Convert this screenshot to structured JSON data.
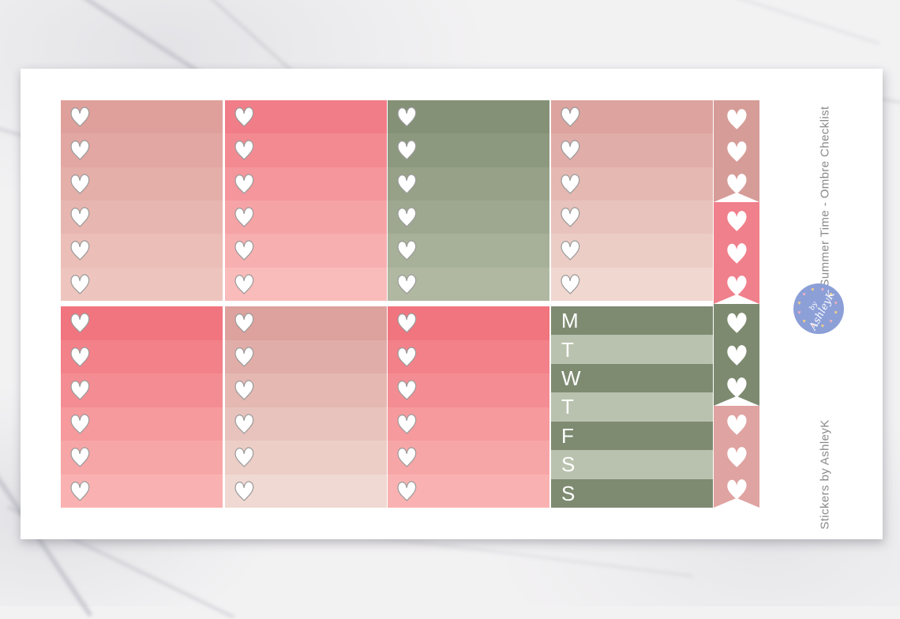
{
  "side_text": {
    "title": "Summer Time - Ombre Checklist",
    "credit": "Stickers by AshleyK",
    "color": "#8a8a8a"
  },
  "logo": {
    "line1": "by",
    "line2": "AshleyK",
    "circle_color": "#8c9fd7",
    "text_color": "#ffffff",
    "accent_heart_colors": [
      "#f2b2bd",
      "#f5d286"
    ]
  },
  "stickers": {
    "heart_fill": "#ffffff",
    "heart_outline_color": "#9a9a9a",
    "top_row": [
      {
        "id": "ombre-checklist-dusty-rose",
        "rows": 6,
        "top_color": "#dfa09b",
        "bottom_color": "#eec5be"
      },
      {
        "id": "ombre-checklist-coral",
        "rows": 6,
        "top_color": "#f17d88",
        "bottom_color": "#f9bcba"
      },
      {
        "id": "ombre-checklist-sage",
        "rows": 6,
        "top_color": "#849176",
        "bottom_color": "#b0b8a1"
      },
      {
        "id": "ombre-checklist-dusty-rose-2",
        "rows": 6,
        "top_color": "#dda39e",
        "bottom_color": "#f0d7d0"
      }
    ],
    "bottom_row": [
      {
        "id": "ombre-checklist-coral-2",
        "rows": 6,
        "top_color": "#f1757f",
        "bottom_color": "#f9b2b1"
      },
      {
        "id": "ombre-checklist-dusty-rose-3",
        "rows": 6,
        "top_color": "#dda29d",
        "bottom_color": "#f0d9d2"
      },
      {
        "id": "ombre-checklist-coral-3",
        "rows": 6,
        "top_color": "#f1757f",
        "bottom_color": "#f9b2b1"
      },
      {
        "id": "weekday-date-covers",
        "type": "weekday",
        "letters": [
          "M",
          "T",
          "W",
          "T",
          "F",
          "S",
          "S"
        ],
        "dark_color": "#7e8b71",
        "light_color": "#b9c2ae",
        "letter_color": "#ffffff"
      }
    ],
    "heart_flags": [
      {
        "id": "heart-flag-dusty-rose",
        "hearts": 3,
        "color": "#d69c98"
      },
      {
        "id": "heart-flag-coral",
        "hearts": 3,
        "color": "#f0808c"
      },
      {
        "id": "heart-flag-sage",
        "hearts": 3,
        "color": "#7d8a70"
      },
      {
        "id": "heart-flag-rose",
        "hearts": 3,
        "color": "#dfa3a1"
      }
    ]
  }
}
